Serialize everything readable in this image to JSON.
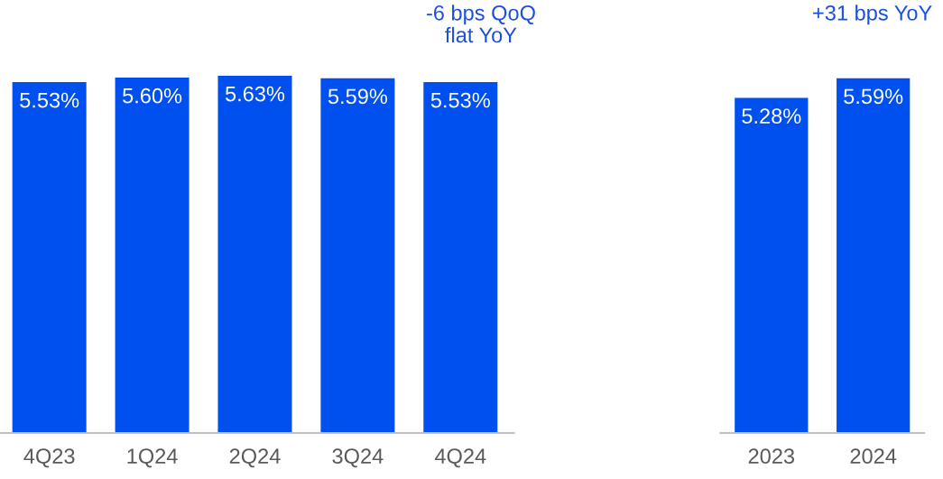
{
  "chart_data": [
    {
      "type": "bar",
      "categories": [
        "4Q23",
        "1Q24",
        "2Q24",
        "3Q24",
        "4Q24"
      ],
      "values": [
        5.53,
        5.6,
        5.63,
        5.59,
        5.53
      ],
      "color": "#0050f0",
      "tick_labels": "x",
      "data_labels": true,
      "value_labels": [
        "5.53%",
        "5.60%",
        "5.63%",
        "5.59%",
        "5.53%"
      ],
      "grid": false,
      "annotations": [
        "-6 bps QoQ\nflat YoY"
      ]
    },
    {
      "type": "bar",
      "categories": [
        "2023",
        "2024"
      ],
      "values": [
        5.28,
        5.59
      ],
      "color": "#0050f0",
      "tick_labels": "x",
      "data_labels": true,
      "value_labels": [
        "5.28%",
        "5.59%"
      ],
      "grid": false,
      "annotations": [
        "+31 bps YoY"
      ]
    }
  ]
}
